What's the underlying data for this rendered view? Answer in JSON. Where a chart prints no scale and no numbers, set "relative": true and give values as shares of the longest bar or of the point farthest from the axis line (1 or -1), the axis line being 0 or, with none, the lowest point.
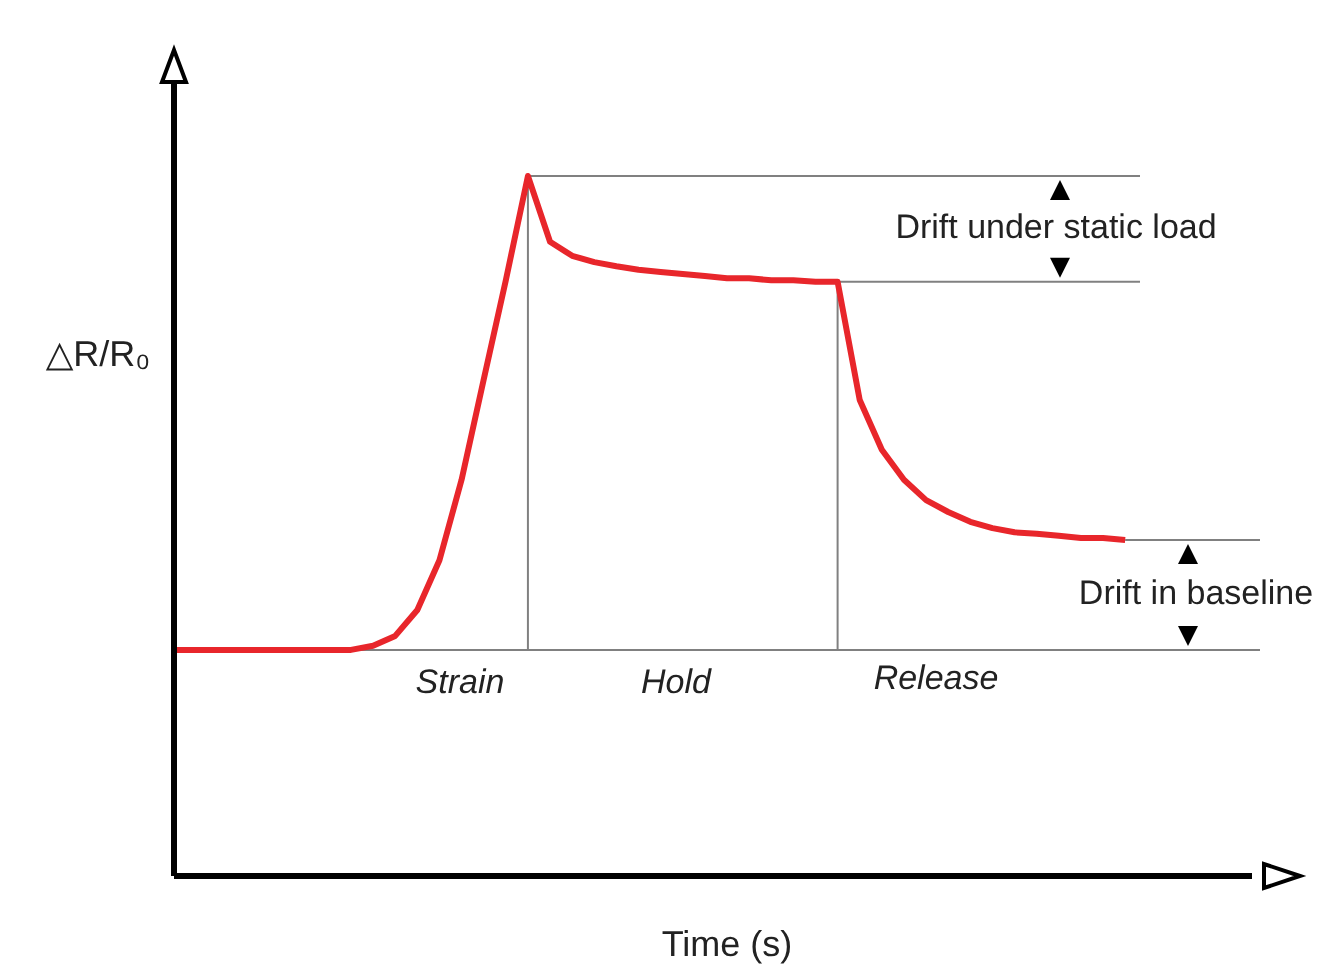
{
  "chart_data": {
    "type": "line",
    "relative": true,
    "xlabel": "Time (s)",
    "ylabel": "△R/R₀",
    "categories": [
      null,
      null,
      null,
      null,
      null,
      null,
      null,
      null,
      null,
      null,
      null,
      null,
      null,
      null,
      null,
      null,
      null,
      null,
      null,
      null,
      null,
      null,
      null,
      null,
      null,
      null,
      null,
      null,
      null,
      null,
      null,
      null,
      null,
      null,
      null,
      null,
      null,
      null,
      null,
      null,
      null,
      null,
      null,
      null,
      null,
      null,
      null,
      null,
      null,
      null,
      null
    ],
    "series": [
      {
        "color": "#e8262b",
        "values": [
          0.323,
          0.323,
          0.323,
          0.323,
          0.323,
          0.323,
          0.323,
          0.323,
          0.323,
          0.329,
          0.343,
          0.38,
          0.451,
          0.566,
          0.709,
          0.851,
          1.0,
          0.906,
          0.886,
          0.877,
          0.871,
          0.866,
          0.863,
          0.86,
          0.857,
          0.854,
          0.854,
          0.851,
          0.851,
          0.849,
          0.849,
          0.68,
          0.609,
          0.566,
          0.537,
          0.52,
          0.506,
          0.497,
          0.491,
          0.489,
          0.486,
          0.483,
          0.483,
          0.48,
          null,
          null,
          null,
          null,
          null,
          null,
          null
        ]
      }
    ],
    "ref_lines": [
      {
        "axis": "y",
        "value": 1.0,
        "color": "#808080"
      },
      {
        "axis": "y",
        "value": 0.849,
        "color": "#808080"
      },
      {
        "axis": "y",
        "value": 0.48,
        "color": "#808080"
      },
      {
        "axis": "y",
        "value": 0.323,
        "color": "#808080"
      }
    ],
    "annotations": [
      "Drift under static load",
      "Drift in baseline",
      "Strain",
      "Hold",
      "Release"
    ]
  }
}
